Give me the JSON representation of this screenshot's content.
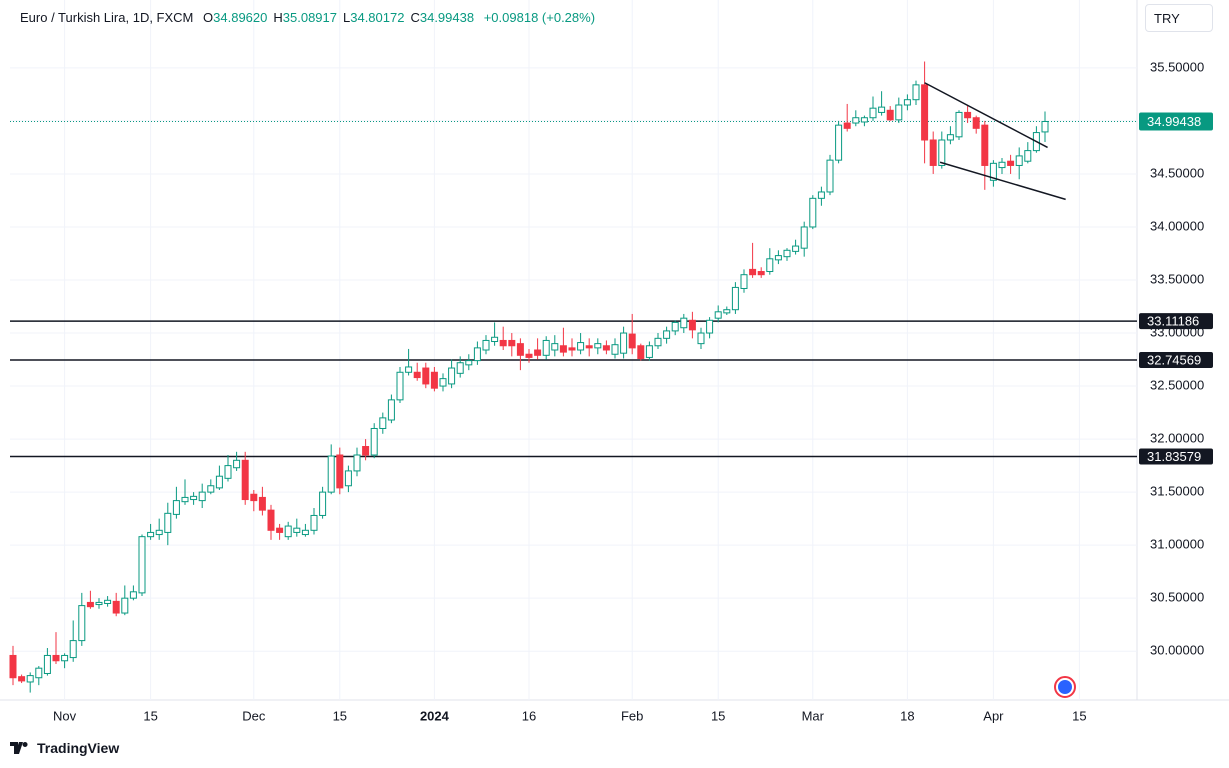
{
  "chart_data": {
    "type": "candlestick",
    "title": "Euro / Turkish Lira, 1D, FXCM",
    "header_fields": [
      {
        "key": "O",
        "value": "34.89620"
      },
      {
        "key": "H",
        "value": "35.08917"
      },
      {
        "key": "L",
        "value": "34.80172"
      },
      {
        "key": "C",
        "value": "34.99438"
      }
    ],
    "change": "+0.09818 (+0.28%)",
    "currency": "TRY",
    "up_color": "#089981",
    "down_color": "#f23645",
    "grid": true,
    "categories": [
      null,
      null,
      null,
      null,
      null,
      null,
      "Nov",
      null,
      null,
      null,
      null,
      null,
      null,
      null,
      null,
      null,
      "15",
      null,
      null,
      null,
      null,
      null,
      null,
      null,
      null,
      null,
      null,
      null,
      "Dec",
      null,
      null,
      null,
      null,
      null,
      null,
      null,
      null,
      null,
      "15",
      null,
      null,
      null,
      null,
      null,
      null,
      null,
      null,
      null,
      null,
      "2024",
      null,
      null,
      null,
      null,
      null,
      null,
      null,
      null,
      null,
      null,
      "16",
      null,
      null,
      null,
      null,
      null,
      null,
      null,
      null,
      null,
      null,
      null,
      "Feb",
      null,
      null,
      null,
      null,
      null,
      null,
      null,
      null,
      null,
      "15",
      null,
      null,
      null,
      null,
      null,
      null,
      null,
      null,
      null,
      null,
      "Mar",
      null,
      null,
      null,
      null,
      null,
      null,
      null,
      null,
      null,
      null,
      "18",
      null,
      null,
      null,
      null,
      null,
      null,
      null,
      null,
      null,
      "Apr",
      null,
      null,
      null,
      null,
      null,
      null,
      null,
      null,
      null,
      "15"
    ],
    "open": [
      29.96,
      29.76,
      29.71,
      29.75,
      29.79,
      29.96,
      29.91,
      29.94,
      30.1,
      30.46,
      30.44,
      30.45,
      30.47,
      30.36,
      30.5,
      30.55,
      31.08,
      31.1,
      31.12,
      31.29,
      31.41,
      31.43,
      31.42,
      31.5,
      31.54,
      31.63,
      31.73,
      31.8,
      31.48,
      31.45,
      31.33,
      31.16,
      31.08,
      31.12,
      31.1,
      31.14,
      31.28,
      31.5,
      31.85,
      31.56,
      31.7,
      31.93,
      31.85,
      32.1,
      32.18,
      32.37,
      32.63,
      32.63,
      32.67,
      32.63,
      32.5,
      32.52,
      32.62,
      32.7,
      32.74,
      32.84,
      32.92,
      32.93,
      32.93,
      32.9,
      32.8,
      32.84,
      32.79,
      32.84,
      32.88,
      32.86,
      32.84,
      32.88,
      32.86,
      32.88,
      32.8,
      32.81,
      32.99,
      32.88,
      32.77,
      32.88,
      32.95,
      33.02,
      33.05,
      33.12,
      32.9,
      33.0,
      33.14,
      33.19,
      33.22,
      33.42,
      33.6,
      33.58,
      33.58,
      33.69,
      33.72,
      33.77,
      33.8,
      34.0,
      34.27,
      34.33,
      34.63,
      34.98,
      34.98,
      34.99,
      35.03,
      35.08,
      35.1,
      35.01,
      35.15,
      35.2,
      35.34,
      34.82,
      34.58,
      34.82,
      34.85,
      35.08,
      35.03,
      34.96,
      34.44,
      34.56,
      34.62,
      34.58,
      34.62,
      34.72,
      34.8962,
      null,
      null,
      null,
      null
    ],
    "high": [
      30.05,
      29.78,
      29.8,
      29.86,
      30.03,
      30.18,
      29.98,
      30.29,
      30.55,
      30.57,
      30.5,
      30.52,
      30.55,
      30.62,
      30.62,
      31.1,
      31.2,
      31.25,
      31.4,
      31.55,
      31.62,
      31.5,
      31.58,
      31.62,
      31.75,
      31.85,
      31.88,
      31.88,
      31.52,
      31.55,
      31.38,
      31.2,
      31.22,
      31.25,
      31.2,
      31.35,
      31.55,
      31.95,
      31.92,
      31.75,
      31.92,
      32.0,
      32.15,
      32.25,
      32.42,
      32.68,
      32.85,
      32.72,
      32.72,
      32.68,
      32.62,
      32.75,
      32.78,
      32.8,
      32.92,
      32.98,
      33.1,
      33.06,
      33.0,
      32.95,
      32.85,
      32.95,
      32.97,
      32.98,
      33.05,
      32.95,
      33.0,
      32.95,
      32.95,
      32.93,
      32.95,
      33.06,
      33.18,
      32.9,
      32.92,
      33.0,
      33.06,
      33.12,
      33.18,
      33.2,
      33.05,
      33.15,
      33.26,
      33.25,
      33.48,
      33.6,
      33.85,
      33.62,
      33.8,
      33.78,
      33.8,
      33.88,
      34.05,
      34.3,
      34.38,
      34.68,
      35.0,
      35.16,
      35.1,
      35.05,
      35.23,
      35.28,
      35.14,
      35.22,
      35.25,
      35.38,
      35.56,
      34.9,
      34.9,
      34.95,
      35.1,
      35.15,
      35.05,
      35.0,
      34.63,
      34.65,
      34.68,
      34.75,
      34.8,
      34.95,
      35.08917,
      null,
      null,
      null,
      null
    ],
    "low": [
      29.68,
      29.7,
      29.61,
      29.68,
      29.77,
      29.88,
      29.84,
      29.9,
      30.05,
      30.4,
      30.4,
      30.42,
      30.33,
      30.34,
      30.48,
      30.52,
      31.05,
      31.05,
      31.0,
      31.25,
      31.38,
      31.38,
      31.35,
      31.48,
      31.52,
      31.6,
      31.7,
      31.38,
      31.32,
      31.28,
      31.05,
      31.05,
      31.05,
      31.08,
      31.08,
      31.1,
      31.25,
      31.48,
      31.48,
      31.5,
      31.65,
      31.8,
      31.82,
      32.05,
      32.15,
      32.34,
      32.6,
      32.55,
      32.48,
      32.45,
      32.45,
      32.48,
      32.58,
      32.65,
      32.7,
      32.8,
      32.88,
      32.84,
      32.78,
      32.65,
      32.72,
      32.75,
      32.75,
      32.78,
      32.78,
      32.78,
      32.8,
      32.78,
      32.8,
      32.8,
      32.76,
      32.76,
      32.8,
      32.74,
      32.74,
      32.85,
      32.9,
      32.98,
      33.0,
      32.95,
      32.85,
      32.95,
      33.1,
      33.17,
      33.18,
      33.38,
      33.52,
      33.52,
      33.55,
      33.65,
      33.68,
      33.74,
      33.72,
      33.98,
      34.2,
      34.3,
      34.6,
      34.9,
      34.95,
      34.95,
      35.0,
      35.05,
      35.0,
      34.98,
      35.1,
      35.15,
      34.6,
      34.5,
      34.55,
      34.78,
      34.82,
      34.98,
      34.88,
      34.35,
      34.38,
      34.5,
      34.5,
      34.45,
      34.6,
      34.7,
      34.80172,
      null,
      null,
      null,
      null
    ],
    "close": [
      29.75,
      29.72,
      29.77,
      29.84,
      29.96,
      29.91,
      29.96,
      30.1,
      30.43,
      30.42,
      30.46,
      30.48,
      30.36,
      30.5,
      30.56,
      31.08,
      31.12,
      31.14,
      31.3,
      31.42,
      31.45,
      31.46,
      31.5,
      31.56,
      31.65,
      31.75,
      31.8,
      31.43,
      31.42,
      31.33,
      31.14,
      31.12,
      31.18,
      31.16,
      31.14,
      31.28,
      31.5,
      31.84,
      31.54,
      31.7,
      31.85,
      31.85,
      32.1,
      32.2,
      32.37,
      32.63,
      32.68,
      32.58,
      32.52,
      32.48,
      32.57,
      32.67,
      32.72,
      32.74,
      32.86,
      32.93,
      32.96,
      32.88,
      32.88,
      32.79,
      32.77,
      32.79,
      32.93,
      32.9,
      32.82,
      32.84,
      32.91,
      32.86,
      32.9,
      32.84,
      32.89,
      33.0,
      32.86,
      32.76,
      32.88,
      32.95,
      33.02,
      33.1,
      33.14,
      33.03,
      33.0,
      33.12,
      33.2,
      33.22,
      33.43,
      33.55,
      33.55,
      33.55,
      33.7,
      33.73,
      33.78,
      33.82,
      34.0,
      34.27,
      34.33,
      34.63,
      34.96,
      34.93,
      35.03,
      35.03,
      35.12,
      35.13,
      35.01,
      35.15,
      35.2,
      35.34,
      34.82,
      34.58,
      34.82,
      34.87,
      35.08,
      35.03,
      34.93,
      34.58,
      34.6,
      34.61,
      34.58,
      34.67,
      34.72,
      34.89,
      34.99438,
      null,
      null,
      null,
      null
    ],
    "ylim": [
      29.54,
      36.14
    ],
    "yticks": [
      {
        "value": 30,
        "label": "30.00000"
      },
      {
        "value": 30.5,
        "label": "30.50000"
      },
      {
        "value": 31,
        "label": "31.00000"
      },
      {
        "value": 31.5,
        "label": "31.50000"
      },
      {
        "value": 32,
        "label": "32.00000"
      },
      {
        "value": 32.5,
        "label": "32.50000"
      },
      {
        "value": 33,
        "label": "33.00000"
      },
      {
        "value": 33.5,
        "label": "33.50000"
      },
      {
        "value": 34,
        "label": "34.00000"
      },
      {
        "value": 34.5,
        "label": "34.50000"
      },
      {
        "value": 35,
        "label": "35.00000"
      },
      {
        "value": 35.5,
        "label": "35.50000"
      }
    ],
    "levels": [
      {
        "value": 33.11186,
        "label": "33.11186"
      },
      {
        "value": 32.74569,
        "label": "32.74569"
      },
      {
        "value": 31.83579,
        "label": "31.83579"
      }
    ],
    "last_price": {
      "value": 34.99438,
      "label": "34.99438"
    },
    "trendlines": [
      {
        "x": [
          106,
          120.3
        ],
        "y": [
          35.36,
          34.75
        ]
      },
      {
        "x": [
          107.8,
          122.4
        ],
        "y": [
          34.61,
          34.26
        ]
      }
    ]
  },
  "footer": {
    "brand": "TradingView"
  }
}
